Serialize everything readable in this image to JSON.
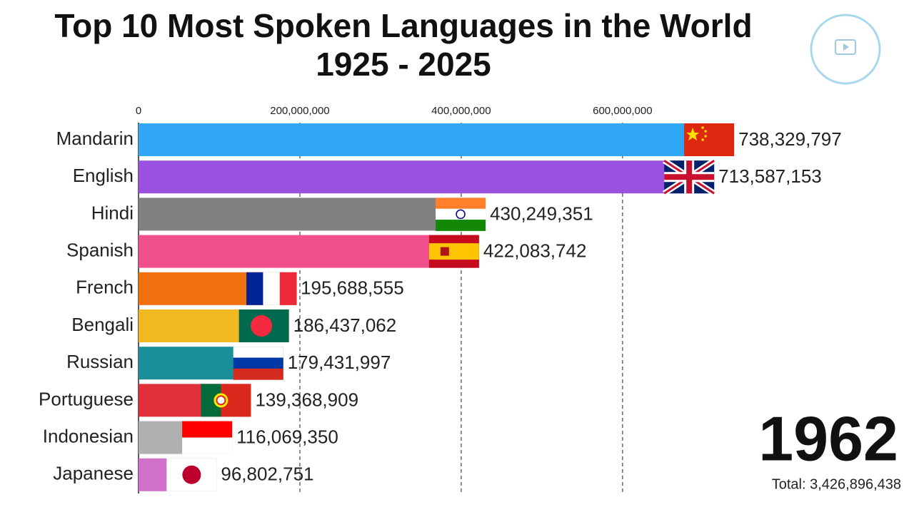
{
  "chart_data": {
    "type": "bar",
    "orientation": "horizontal",
    "title": "Top 10 Most Spoken Languages in the World",
    "subtitle": "1925 - 2025",
    "categories": [
      "Mandarin",
      "English",
      "Hindi",
      "Spanish",
      "French",
      "Bengali",
      "Russian",
      "Portuguese",
      "Indonesian",
      "Japanese"
    ],
    "values": [
      738329797,
      713587153,
      430249351,
      422083742,
      195688555,
      186437062,
      179431997,
      139368909,
      116069350,
      96802751
    ],
    "value_labels": [
      "738,329,797",
      "713,587,153",
      "430,249,351",
      "422,083,742",
      "195,688,555",
      "186,437,062",
      "179,431,997",
      "139,368,909",
      "116,069,350",
      "96,802,751"
    ],
    "colors": [
      "#2fa7f5",
      "#9b51e0",
      "#808080",
      "#f0508c",
      "#f07010",
      "#f2b820",
      "#1a8f9a",
      "#e0303a",
      "#b0b0b0",
      "#d070c8"
    ],
    "xlim": [
      0,
      740000000
    ],
    "xticks": [
      0,
      {
        "value": 200000000,
        "label": "200,000,000"
      },
      {
        "value": 400000000,
        "label": "400,000,000"
      },
      {
        "value": 600000000,
        "label": "600,000,000"
      }
    ],
    "grid": true,
    "year": 1962,
    "total_label": "Total: 3,426,896,438"
  }
}
